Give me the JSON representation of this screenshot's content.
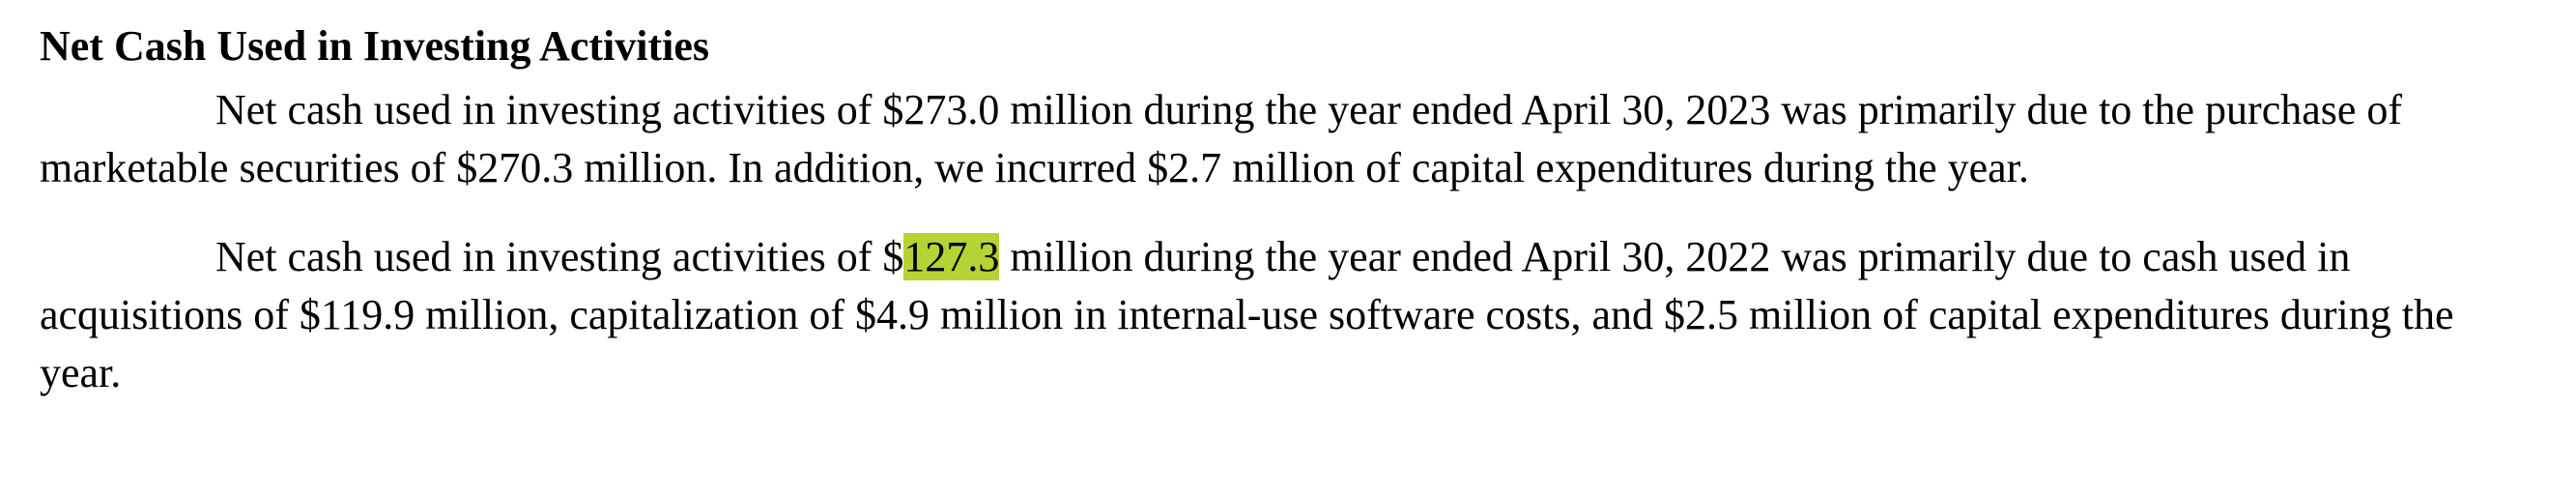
{
  "section": {
    "heading": "Net Cash Used in Investing Activities"
  },
  "paragraphs": [
    {
      "text": "Net cash used in investing activities of $273.0 million during the year ended April 30, 2023 was primarily due to the purchase of marketable securities of $270.3 million. In addition, we incurred $2.7 million of capital expenditures during the year."
    },
    {
      "before": "Net cash used in investing activities of $",
      "highlight": "127.3",
      "after": " million during the year ended April 30, 2022 was primarily due to cash used in acquisitions of $119.9 million, capitalization of $4.9 million in internal-use software costs, and $2.5 million of capital expenditures during the year."
    }
  ],
  "colors": {
    "highlight": "#b5d334",
    "text": "#000000",
    "background": "#ffffff"
  }
}
